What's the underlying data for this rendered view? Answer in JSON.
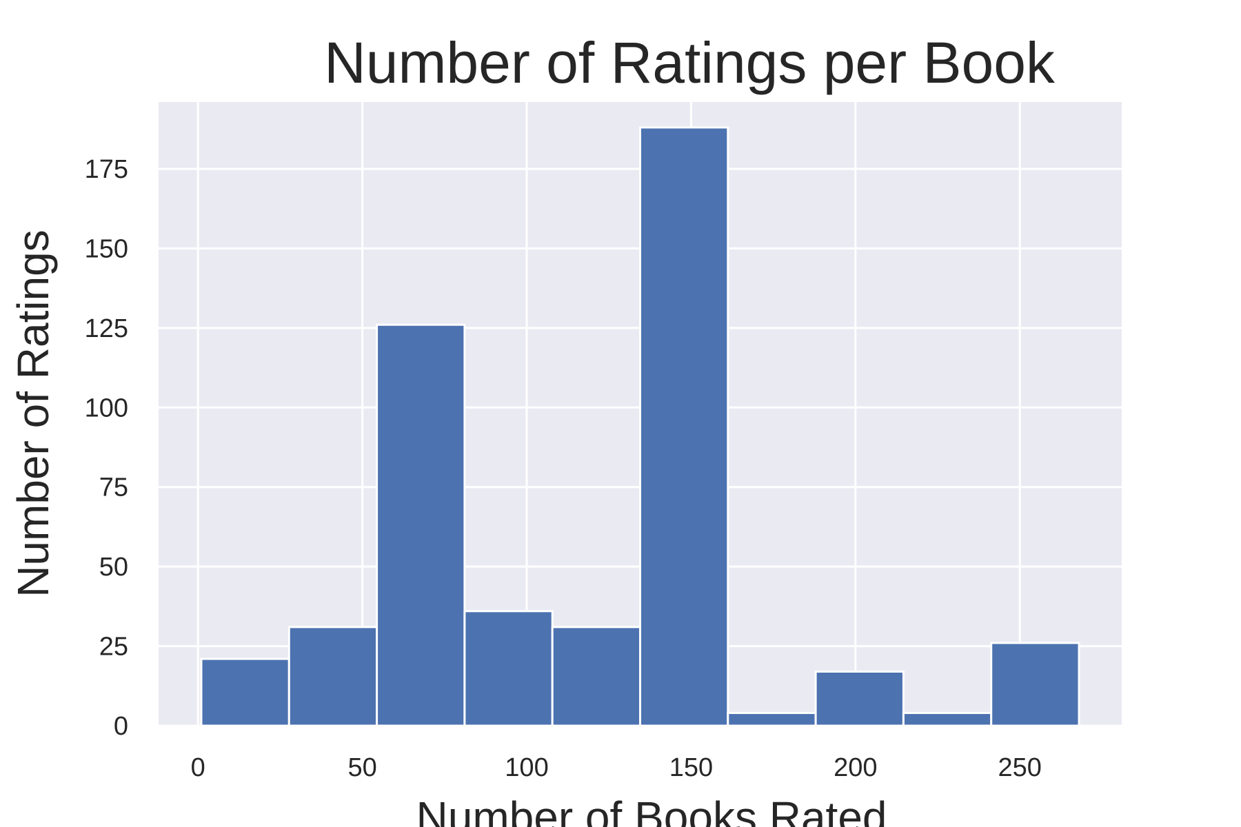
{
  "chart_data": {
    "type": "bar",
    "title": "Number of Ratings per Book",
    "xlabel": "Number of Books Rated",
    "ylabel": "Number of Ratings",
    "bins": [
      {
        "start": 1,
        "end": 27.7,
        "value": 21
      },
      {
        "start": 27.7,
        "end": 54.4,
        "value": 31
      },
      {
        "start": 54.4,
        "end": 81.1,
        "value": 126
      },
      {
        "start": 81.1,
        "end": 107.8,
        "value": 36
      },
      {
        "start": 107.8,
        "end": 134.5,
        "value": 31
      },
      {
        "start": 134.5,
        "end": 161.2,
        "value": 188
      },
      {
        "start": 161.2,
        "end": 187.9,
        "value": 4
      },
      {
        "start": 187.9,
        "end": 214.6,
        "value": 17
      },
      {
        "start": 214.6,
        "end": 241.3,
        "value": 4
      },
      {
        "start": 241.3,
        "end": 268,
        "value": 26
      }
    ],
    "xlim": [
      -12,
      281
    ],
    "ylim": [
      0,
      196
    ],
    "xticks": [
      0,
      50,
      100,
      150,
      200,
      250
    ],
    "yticks": [
      0,
      25,
      50,
      75,
      100,
      125,
      150,
      175
    ],
    "grid": true,
    "bar_color": "#4c72b0",
    "background_color": "#eaeaf2"
  }
}
